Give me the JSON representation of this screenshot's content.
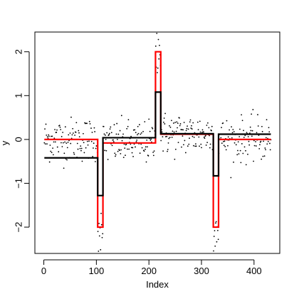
{
  "chart_data": {
    "type": "line",
    "title": "",
    "xlabel": "Index",
    "ylabel": "y",
    "xlim": [
      0,
      430
    ],
    "ylim": [
      -2.5,
      2.3
    ],
    "x_ticks": [
      0,
      100,
      200,
      300,
      400
    ],
    "y_ticks": [
      -2,
      -1,
      0,
      1,
      2
    ],
    "grid": false,
    "legend": "none",
    "colors": {
      "truth": "#ff0000",
      "estimate": "#000000",
      "points": "#000000"
    },
    "series": [
      {
        "role": "truth",
        "color": "#ff0000",
        "segments": [
          {
            "x_start": 1,
            "x_end": 102,
            "y": 0.0
          },
          {
            "x_start": 103,
            "x_end": 112,
            "y": -2.0
          },
          {
            "x_start": 113,
            "x_end": 212,
            "y": -0.08
          },
          {
            "x_start": 213,
            "x_end": 222,
            "y": 2.0
          },
          {
            "x_start": 223,
            "x_end": 322,
            "y": 0.12
          },
          {
            "x_start": 323,
            "x_end": 332,
            "y": -2.0
          },
          {
            "x_start": 333,
            "x_end": 432,
            "y": 0.0
          }
        ]
      },
      {
        "role": "estimate",
        "color": "#000000",
        "segments": [
          {
            "x_start": 1,
            "x_end": 102,
            "y": -0.42
          },
          {
            "x_start": 103,
            "x_end": 112,
            "y": -1.28
          },
          {
            "x_start": 113,
            "x_end": 212,
            "y": 0.04
          },
          {
            "x_start": 213,
            "x_end": 222,
            "y": 1.08
          },
          {
            "x_start": 223,
            "x_end": 322,
            "y": 0.13
          },
          {
            "x_start": 323,
            "x_end": 332,
            "y": -0.83
          },
          {
            "x_start": 333,
            "x_end": 432,
            "y": 0.12
          }
        ]
      }
    ],
    "scatter": {
      "n": 432,
      "noise_sd": 0.25,
      "outliers": [
        {
          "x": 104,
          "y": -2.55
        },
        {
          "x": 112,
          "y": -2.15
        },
        {
          "x": 215,
          "y": 2.42
        },
        {
          "x": 218,
          "y": 2.28
        },
        {
          "x": 325,
          "y": -2.08
        }
      ]
    }
  }
}
